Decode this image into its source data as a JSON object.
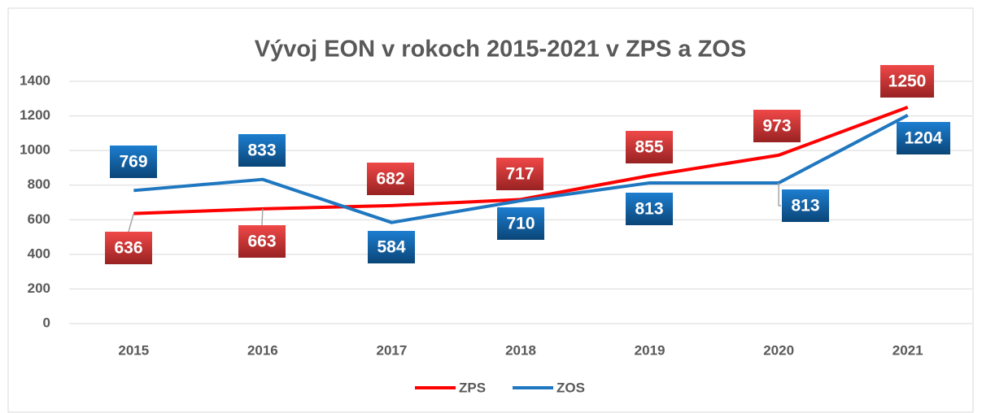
{
  "chart_data": {
    "type": "line",
    "title": "Vývoj EON v rokoch 2015-2021 v ZPS a ZOS",
    "categories": [
      "2015",
      "2016",
      "2017",
      "2018",
      "2019",
      "2020",
      "2021"
    ],
    "series": [
      {
        "name": "ZPS",
        "color": "#ff0000",
        "values": [
          636,
          663,
          682,
          717,
          855,
          973,
          1250
        ]
      },
      {
        "name": "ZOS",
        "color": "#1f77c0",
        "values": [
          769,
          833,
          584,
          710,
          813,
          813,
          1204
        ]
      }
    ],
    "ylim": [
      0,
      1400
    ],
    "yticks": [
      0,
      200,
      400,
      600,
      800,
      1000,
      1200,
      1400
    ],
    "grid": true,
    "legend": "bottom"
  }
}
